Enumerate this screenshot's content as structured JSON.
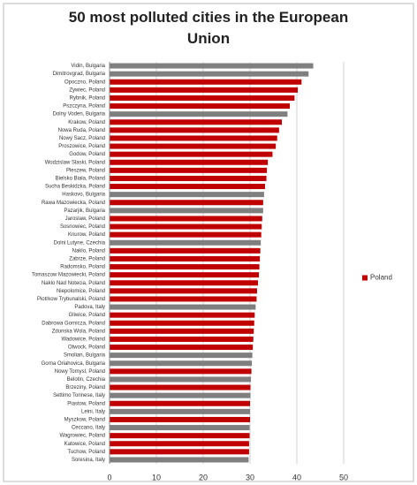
{
  "chart_data": {
    "type": "barh",
    "title": "50 most polluted cities in the European Union",
    "categories": [
      "Vidin, Bulgaria",
      "Dimitrovgrad, Bulgaria",
      "Opoczno, Poland",
      "Zywiec, Poland",
      "Rybnik, Poland",
      "Pszczyna, Poland",
      "Dolny Voden, Bulgaria",
      "Krakow, Poland",
      "Nowa Ruda, Poland",
      "Nowy Sacz, Poland",
      "Proszowice, Poland",
      "Godow, Poland",
      "Wodzislaw Slaski, Poland",
      "Pleszew, Poland",
      "Bielsko Biala, Poland",
      "Sucha Beskidzka, Poland",
      "Haskovo, Bulgaria",
      "Rawa Mazowiecka, Poland",
      "Pazarjik, Bulgaria",
      "Jaroslaw, Poland",
      "Sosnowiec, Poland",
      "Knurow, Poland",
      "Dolni Lutyne, Czechia",
      "Naklo, Poland",
      "Zabrze, Poland",
      "Radomsko, Poland",
      "Tomaszow Mazowiecki, Poland",
      "Naklo Nad Notecia, Poland",
      "Niepolomice, Poland",
      "Piotrkow Trybunalski, Poland",
      "Padova, Italy",
      "Gliwice, Poland",
      "Dabrowa Gornicza, Poland",
      "Zdunska Wola, Poland",
      "Wadowice, Poland",
      "Otwock, Poland",
      "Smolian, Bulgaria",
      "Gorna Oriahovica, Bulgaria",
      "Nowy Tomysl, Poland",
      "Belotin, Czechia",
      "Brzeziny, Poland",
      "Settimo Torinese, Italy",
      "Piastow, Poland",
      "Leini, Italy",
      "Myszkow, Poland",
      "Ceccano, Italy",
      "Wagrowiec, Poland",
      "Katowice, Poland",
      "Tuchow, Poland",
      "Soresina, Italy"
    ],
    "series": [
      {
        "name": "Poland",
        "color": "#c00000",
        "values": [
          43.5,
          42.5,
          41,
          40.2,
          39.5,
          38.5,
          38,
          36.8,
          36.2,
          35.8,
          35.5,
          34.8,
          33.8,
          33.6,
          33.5,
          33.2,
          33,
          32.8,
          32.8,
          32.6,
          32.5,
          32.4,
          32.3,
          32.2,
          32.1,
          32,
          31.9,
          31.7,
          31.5,
          31.4,
          31.2,
          31,
          30.9,
          30.8,
          30.7,
          30.6,
          30.5,
          30.4,
          30.3,
          30.2,
          30.1,
          30.1,
          30,
          30,
          30,
          29.9,
          29.9,
          29.8,
          29.8,
          29.7
        ]
      }
    ],
    "bar_colors": [
      "#7f7f7f",
      "#7f7f7f",
      "#c00000",
      "#c00000",
      "#c00000",
      "#c00000",
      "#7f7f7f",
      "#c00000",
      "#c00000",
      "#c00000",
      "#c00000",
      "#c00000",
      "#c00000",
      "#c00000",
      "#c00000",
      "#c00000",
      "#7f7f7f",
      "#c00000",
      "#7f7f7f",
      "#c00000",
      "#c00000",
      "#c00000",
      "#7f7f7f",
      "#c00000",
      "#c00000",
      "#c00000",
      "#c00000",
      "#c00000",
      "#c00000",
      "#c00000",
      "#7f7f7f",
      "#c00000",
      "#c00000",
      "#c00000",
      "#c00000",
      "#c00000",
      "#7f7f7f",
      "#7f7f7f",
      "#c00000",
      "#7f7f7f",
      "#c00000",
      "#7f7f7f",
      "#c00000",
      "#7f7f7f",
      "#c00000",
      "#7f7f7f",
      "#c00000",
      "#c00000",
      "#c00000",
      "#7f7f7f"
    ],
    "xlim": [
      0,
      50
    ],
    "xticks": [
      0,
      10,
      20,
      30,
      40,
      50
    ],
    "grid": true,
    "legend": "right"
  }
}
